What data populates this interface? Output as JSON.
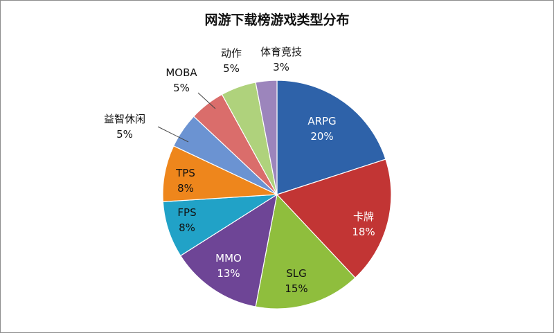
{
  "chart_data": {
    "type": "pie",
    "title": "网游下载榜游戏类型分布",
    "slices": [
      {
        "name": "ARPG",
        "value": 20,
        "pct_label": "20%",
        "color": "#2E62A9"
      },
      {
        "name": "卡牌",
        "value": 18,
        "pct_label": "18%",
        "color": "#C23534"
      },
      {
        "name": "SLG",
        "value": 15,
        "pct_label": "15%",
        "color": "#8FBE3D"
      },
      {
        "name": "MMO",
        "value": 13,
        "pct_label": "13%",
        "color": "#6E4596"
      },
      {
        "name": "FPS",
        "value": 8,
        "pct_label": "8%",
        "color": "#21A2C7"
      },
      {
        "name": "TPS",
        "value": 8,
        "pct_label": "8%",
        "color": "#EE861C"
      },
      {
        "name": "益智休闲",
        "value": 5,
        "pct_label": "5%",
        "color": "#6B93D2"
      },
      {
        "name": "MOBA",
        "value": 5,
        "pct_label": "5%",
        "color": "#DA6D6B"
      },
      {
        "name": "动作",
        "value": 5,
        "pct_label": "5%",
        "color": "#AFD27C"
      },
      {
        "name": "体育竞技",
        "value": 3,
        "pct_label": "3%",
        "color": "#9C85BC"
      }
    ]
  }
}
